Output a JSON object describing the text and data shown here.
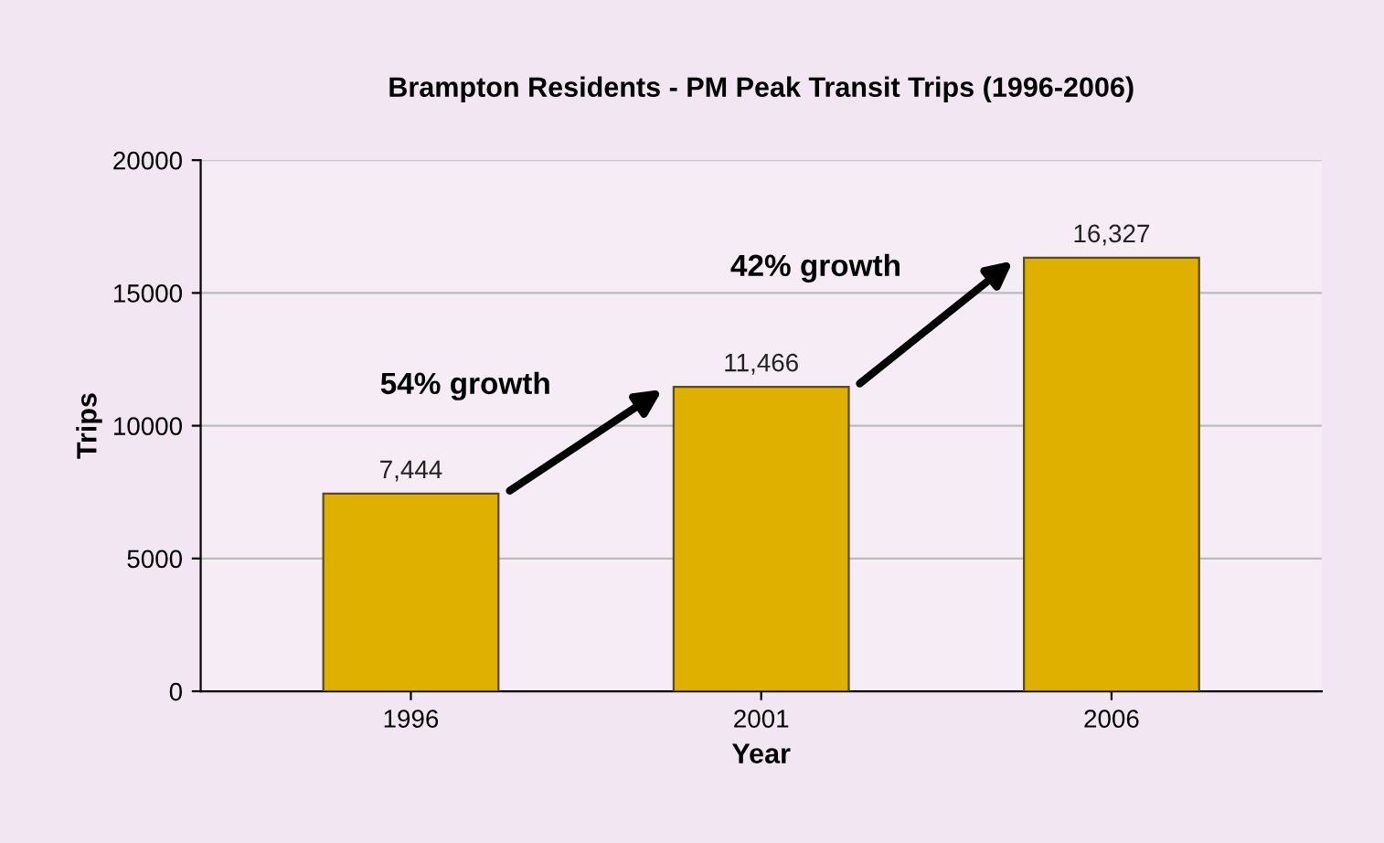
{
  "chart_data": {
    "type": "bar",
    "title": "Brampton Residents - PM Peak Transit Trips (1996-2006)",
    "xlabel": "Year",
    "ylabel": "Trips",
    "categories": [
      "1996",
      "2001",
      "2006"
    ],
    "values": [
      7444,
      11466,
      16327
    ],
    "value_labels": [
      "7,444",
      "11,466",
      "16,327"
    ],
    "color": "#e0b000",
    "ylim": [
      0,
      20000
    ],
    "yticks": [
      0,
      5000,
      10000,
      15000,
      20000
    ],
    "grid": "y",
    "annotations": [
      "54% growth",
      "42% growth"
    ]
  }
}
